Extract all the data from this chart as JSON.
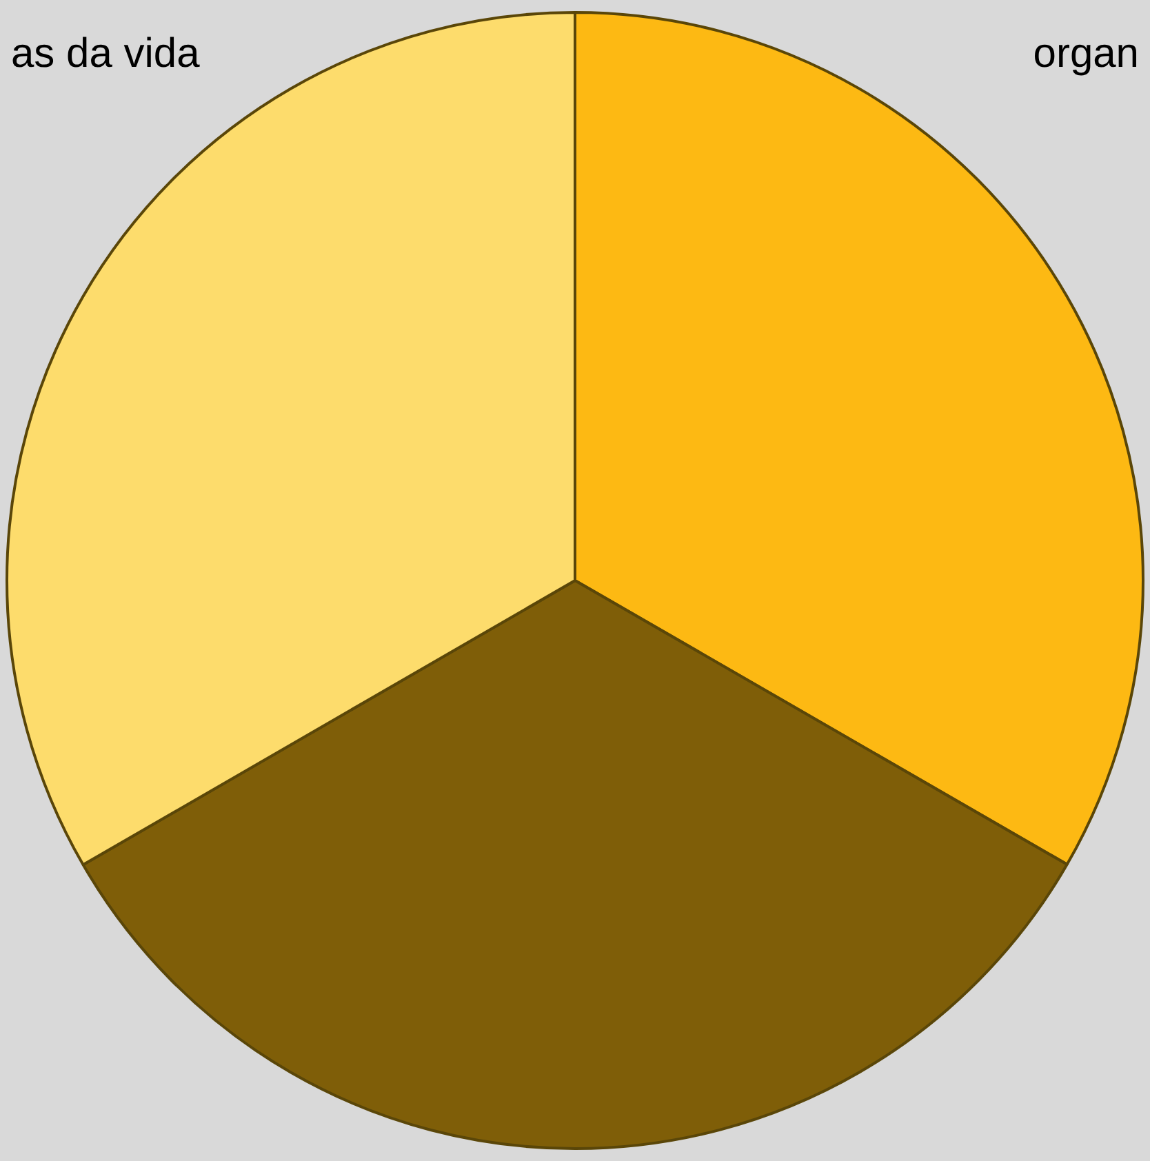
{
  "chart_data": {
    "type": "pie",
    "categories": [
      "organ",
      null,
      "as da vida"
    ],
    "values": [
      33.33,
      33.33,
      33.34
    ],
    "colors": [
      "#fdb913",
      "#7f5e08",
      "#fddc6c"
    ],
    "legend": false
  }
}
